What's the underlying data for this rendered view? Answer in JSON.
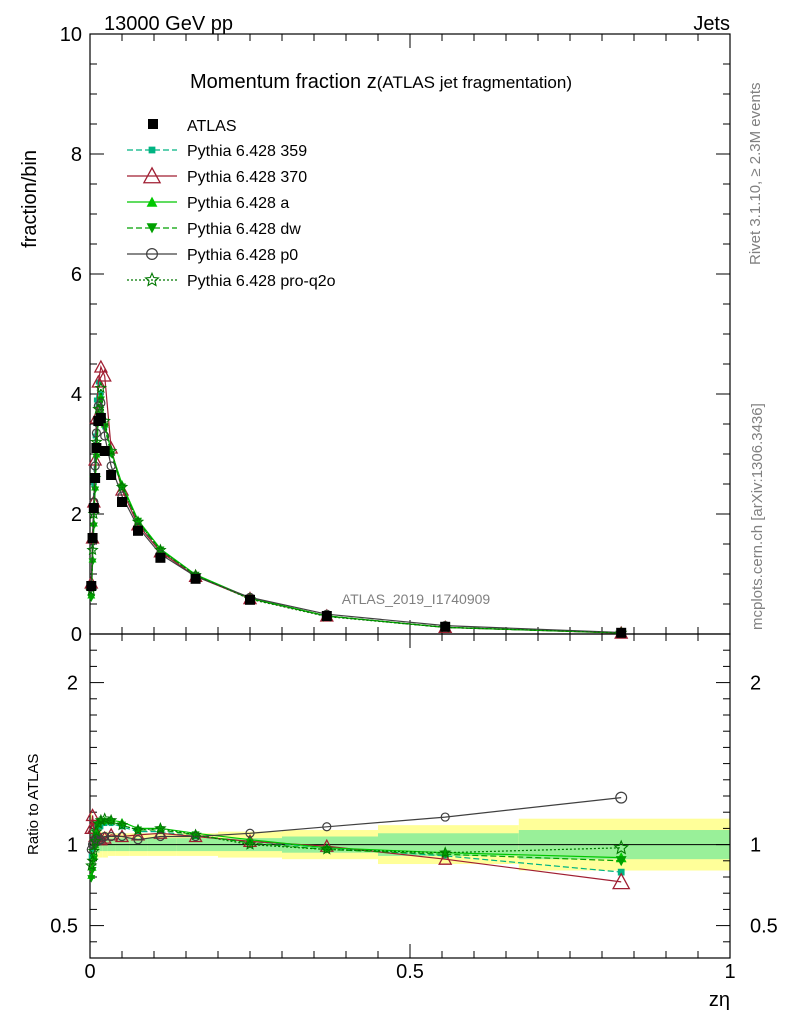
{
  "header": {
    "energy_label": "13000 GeV pp",
    "category_label": "Jets"
  },
  "side_labels": {
    "rivet": "Rivet 3.1.10, ≥ 2.3M events",
    "mcplots": "mcplots.cern.ch [arXiv:1306.3436]"
  },
  "chart_data": {
    "type": "line",
    "title_main": "Momentum fraction z",
    "title_sub": "(ATLAS jet fragmentation)",
    "analysis_id": "ATLAS_2019_I1740909",
    "xlabel": "zη",
    "ylabel": "fraction/bin",
    "ratio_ylabel": "Ratio to ATLAS",
    "xlim": [
      0,
      1
    ],
    "ylim": [
      0,
      10
    ],
    "ratio_ylim": [
      0.3,
      2.3
    ],
    "x_ticks": [
      "0",
      "0.5",
      "1"
    ],
    "y_ticks": [
      "0",
      "2",
      "4",
      "6",
      "8",
      "10"
    ],
    "ratio_ticks": [
      "0.5",
      "1",
      "2"
    ],
    "legend_position": "top-left",
    "x": [
      0.002,
      0.004,
      0.006,
      0.008,
      0.01,
      0.013,
      0.017,
      0.023,
      0.033,
      0.05,
      0.075,
      0.11,
      0.165,
      0.25,
      0.37,
      0.555,
      0.83
    ],
    "data": {
      "name": "ATLAS",
      "values": [
        0.8,
        1.6,
        2.1,
        2.6,
        3.1,
        3.55,
        3.6,
        3.05,
        2.65,
        2.2,
        1.72,
        1.27,
        0.92,
        0.57,
        0.3,
        0.12,
        0.02
      ]
    },
    "series": [
      {
        "name": "Pythia 6.428 359",
        "color": "#00b482",
        "marker": "square-small",
        "dash": "6,3",
        "values": [
          0.75,
          1.55,
          2.5,
          3.3,
          3.9,
          4.2,
          4.0,
          3.45,
          3.0,
          2.45,
          1.85,
          1.38,
          0.97,
          0.59,
          0.3,
          0.11,
          0.017
        ]
      },
      {
        "name": "Pythia 6.428 370",
        "color": "#a01e32",
        "marker": "triangle-open",
        "dash": "",
        "values": [
          0.85,
          1.6,
          2.2,
          2.9,
          3.6,
          4.2,
          4.45,
          4.3,
          3.1,
          2.4,
          1.82,
          1.37,
          0.96,
          0.59,
          0.3,
          0.11,
          0.015
        ]
      },
      {
        "name": "Pythia 6.428 a",
        "color": "#00c800",
        "marker": "triangle",
        "dash": "",
        "values": [
          0.65,
          1.25,
          1.85,
          2.45,
          3.0,
          3.6,
          3.95,
          3.5,
          3.05,
          2.5,
          1.9,
          1.42,
          0.99,
          0.6,
          0.3,
          0.11,
          0.018
        ]
      },
      {
        "name": "Pythia 6.428 dw",
        "color": "#00a000",
        "marker": "triangle-down",
        "dash": "6,3",
        "values": [
          0.6,
          1.2,
          1.8,
          2.4,
          2.95,
          3.55,
          3.9,
          3.45,
          3.0,
          2.45,
          1.88,
          1.4,
          0.98,
          0.59,
          0.3,
          0.11,
          0.018
        ]
      },
      {
        "name": "Pythia 6.428 p0",
        "color": "#404040",
        "marker": "circle-open",
        "dash": "",
        "values": [
          0.78,
          1.55,
          2.2,
          2.8,
          3.35,
          3.8,
          3.85,
          3.3,
          2.8,
          2.3,
          1.78,
          1.33,
          0.96,
          0.61,
          0.33,
          0.14,
          0.025
        ]
      },
      {
        "name": "Pythia 6.428 pro-q2o",
        "color": "#007800",
        "marker": "star-open",
        "dash": "2,2",
        "values": [
          0.72,
          1.4,
          2.0,
          2.6,
          3.2,
          3.75,
          4.1,
          3.55,
          3.05,
          2.45,
          1.87,
          1.4,
          0.98,
          0.58,
          0.29,
          0.11,
          0.02
        ]
      }
    ],
    "ratio_series": [
      {
        "name": "Pythia 6.428 359",
        "values": [
          0.93,
          0.97,
          1.05,
          1.1,
          1.12,
          1.13,
          1.11,
          1.13,
          1.13,
          1.11,
          1.08,
          1.08,
          1.05,
          1.02,
          0.98,
          0.93,
          0.83
        ]
      },
      {
        "name": "Pythia 6.428 370",
        "values": [
          1.1,
          1.18,
          1.1,
          1.05,
          1.05,
          1.04,
          1.03,
          1.04,
          1.06,
          1.05,
          1.06,
          1.07,
          1.05,
          1.02,
          0.99,
          0.91,
          0.77
        ]
      },
      {
        "name": "Pythia 6.428 a",
        "values": [
          0.81,
          0.86,
          0.93,
          1.0,
          1.08,
          1.14,
          1.15,
          1.15,
          1.15,
          1.14,
          1.1,
          1.1,
          1.07,
          1.03,
          0.98,
          0.95,
          0.92
        ]
      },
      {
        "name": "Pythia 6.428 dw",
        "values": [
          0.79,
          0.84,
          0.91,
          0.98,
          1.06,
          1.12,
          1.14,
          1.14,
          1.14,
          1.12,
          1.09,
          1.09,
          1.06,
          1.01,
          0.97,
          0.94,
          0.9
        ]
      },
      {
        "name": "Pythia 6.428 p0",
        "values": [
          0.97,
          1.0,
          1.02,
          1.03,
          1.03,
          1.02,
          1.03,
          1.05,
          1.05,
          1.05,
          1.03,
          1.05,
          1.05,
          1.07,
          1.11,
          1.17,
          1.29
        ]
      },
      {
        "name": "Pythia 6.428 pro-q2o",
        "values": [
          0.87,
          0.9,
          0.96,
          1.02,
          1.08,
          1.13,
          1.15,
          1.16,
          1.15,
          1.12,
          1.09,
          1.1,
          1.06,
          1.0,
          0.97,
          0.95,
          0.98
        ]
      }
    ],
    "ratio_bands": {
      "x_edges": [
        0.0,
        0.003,
        0.005,
        0.007,
        0.009,
        0.012,
        0.015,
        0.02,
        0.028,
        0.04,
        0.062,
        0.09,
        0.135,
        0.2,
        0.3,
        0.45,
        0.67,
        1.0
      ],
      "yellow_half_width": [
        0.2,
        0.14,
        0.11,
        0.1,
        0.09,
        0.08,
        0.08,
        0.08,
        0.07,
        0.07,
        0.07,
        0.07,
        0.07,
        0.08,
        0.09,
        0.12,
        0.16
      ],
      "green_half_width": [
        0.12,
        0.08,
        0.06,
        0.05,
        0.05,
        0.05,
        0.04,
        0.04,
        0.04,
        0.04,
        0.04,
        0.04,
        0.04,
        0.04,
        0.05,
        0.07,
        0.09
      ]
    }
  }
}
